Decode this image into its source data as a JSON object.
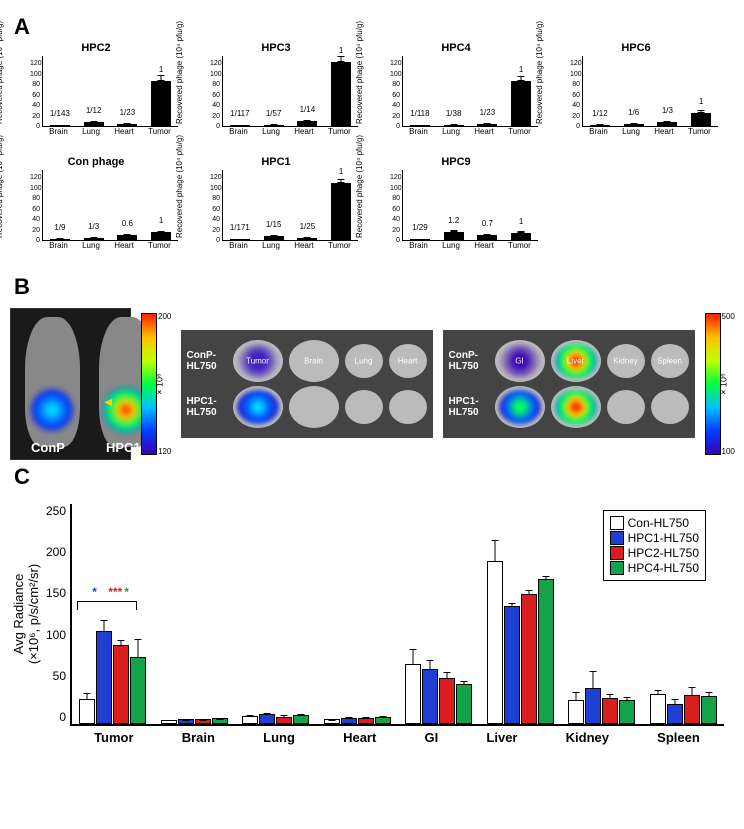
{
  "panelA": {
    "label": "A",
    "ylabel": "Recovered phage (10⁴ pfu/g)",
    "categories": [
      "Brain",
      "Lung",
      "Heart",
      "Tumor"
    ],
    "ylim": [
      0,
      120
    ],
    "yticks": [
      0,
      20,
      40,
      60,
      80,
      100,
      120
    ],
    "bar_color": "#000000",
    "charts": [
      {
        "title": "HPC2",
        "values": [
          0.5,
          7,
          3,
          77
        ],
        "errors": [
          0,
          2,
          1,
          10
        ],
        "value_labels": [
          "1/143",
          "1/12",
          "1/23",
          "1"
        ]
      },
      {
        "title": "HPC3",
        "values": [
          1,
          2,
          8,
          110
        ],
        "errors": [
          0,
          1,
          2,
          10
        ],
        "value_labels": [
          "1/117",
          "1/57",
          "1/14",
          "1"
        ]
      },
      {
        "title": "HPC4",
        "values": [
          0.7,
          2,
          3,
          78
        ],
        "errors": [
          0,
          1,
          1,
          8
        ],
        "value_labels": [
          "1/118",
          "1/38",
          "1/23",
          "1"
        ]
      },
      {
        "title": "HPC6",
        "values": [
          2,
          4,
          7,
          23
        ],
        "errors": [
          1,
          2,
          2,
          5
        ],
        "value_labels": [
          "1/12",
          "1/6",
          "1/3",
          "1"
        ]
      },
      {
        "title": "Con phage",
        "values": [
          1.5,
          4,
          8,
          13
        ],
        "errors": [
          1,
          1,
          2,
          3
        ],
        "value_labels": [
          "1/9",
          "1/3",
          "0.6",
          "1"
        ]
      },
      {
        "title": "HPC1",
        "values": [
          0.6,
          7,
          4,
          98
        ],
        "errors": [
          0,
          2,
          1,
          7
        ],
        "value_labels": [
          "1/171",
          "1/15",
          "1/25",
          "1"
        ]
      },
      {
        "title": "HPC9",
        "values": [
          0.4,
          14,
          8,
          12
        ],
        "errors": [
          0,
          3,
          2,
          3
        ],
        "value_labels": [
          "1/29",
          "1.2",
          "0.7",
          "1"
        ]
      }
    ]
  },
  "panelB": {
    "label": "B",
    "mouse_labels": [
      "ConP",
      "HPC1"
    ],
    "colorbar1": {
      "min": 120,
      "max": 200,
      "unit": "× 10⁶"
    },
    "colorbar2": {
      "min": 100,
      "max": 500,
      "unit": "× 10⁶"
    },
    "organ_rows": [
      "ConP-HL750",
      "HPC1-HL750"
    ],
    "organs_left": [
      "Tumor",
      "Brain",
      "Lung",
      "Heart"
    ],
    "organs_right": [
      "GI",
      "Liver",
      "Kidney",
      "Spleen"
    ]
  },
  "panelC": {
    "label": "C",
    "ylabel_line1": "Avg Radiance",
    "ylabel_line2": "(×10⁶, p/s/cm²/sr)",
    "ylim": [
      0,
      250
    ],
    "yticks": [
      0,
      50,
      100,
      150,
      200,
      250
    ],
    "groups": [
      "Tumor",
      "Brain",
      "Lung",
      "Heart",
      "GI",
      "Liver",
      "Kidney",
      "Spleen"
    ],
    "series": [
      {
        "name": "Con-HL750",
        "color": "#ffffff",
        "border": "#000000",
        "values": [
          26,
          2,
          7,
          3,
          66,
          183,
          25,
          32
        ],
        "errors": [
          8,
          1,
          2,
          1,
          18,
          25,
          10,
          5
        ]
      },
      {
        "name": "HPC1-HL750",
        "color": "#1f3fd3",
        "border": "#000000",
        "values": [
          103,
          3,
          9,
          5,
          60,
          132,
          39,
          21
        ],
        "errors": [
          14,
          1,
          2,
          2,
          12,
          4,
          20,
          6
        ]
      },
      {
        "name": "HPC2-HL750",
        "color": "#d81e1e",
        "border": "#000000",
        "values": [
          87,
          3,
          6,
          5,
          50,
          145,
          27,
          31
        ],
        "errors": [
          7,
          1,
          3,
          2,
          8,
          6,
          6,
          10
        ]
      },
      {
        "name": "HPC4-HL750",
        "color": "#14a24a",
        "border": "#000000",
        "values": [
          74,
          4,
          8,
          6,
          43,
          163,
          25,
          29
        ],
        "errors": [
          22,
          1,
          2,
          2,
          5,
          4,
          5,
          6
        ]
      }
    ],
    "significance": [
      {
        "label": "*",
        "color": "#1f3fd3"
      },
      {
        "label": "***",
        "color": "#d81e1e"
      },
      {
        "label": "*",
        "color": "#14a24a"
      }
    ]
  }
}
